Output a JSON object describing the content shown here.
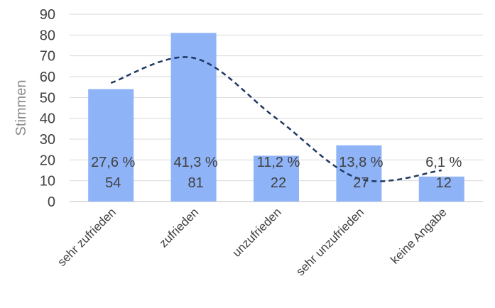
{
  "chart_data": {
    "type": "bar",
    "title": "",
    "xlabel": "",
    "ylabel": "Stimmen",
    "ylim": [
      0,
      90
    ],
    "yticks": [
      0,
      10,
      20,
      30,
      40,
      50,
      60,
      70,
      80,
      90
    ],
    "grid": true,
    "legend": "none",
    "categories": [
      "sehr zufrieden",
      "zufrieden",
      "unzufrieden",
      "sehr unzufrieden",
      "keine Angabe"
    ],
    "values": [
      54,
      81,
      22,
      27,
      12
    ],
    "percent_labels": [
      "27,6 %",
      "41,3 %",
      "11,2 %",
      "13,8 %",
      "6,1 %"
    ],
    "trendline": {
      "type": "polynomial",
      "style": "dashed",
      "color": "#1f3864",
      "points": [
        {
          "category": "sehr zufrieden",
          "y": 57
        },
        {
          "category": "zufrieden",
          "y": 69
        },
        {
          "category": "unzufrieden",
          "y": 40
        },
        {
          "category": "sehr unzufrieden",
          "y": 11
        },
        {
          "category": "keine Angabe",
          "y": 15
        }
      ]
    },
    "colors": {
      "bar": "#8fb3f7",
      "gridline": "#d9d9d9",
      "axis_line": "#bfbfbf",
      "text": "#404040",
      "axis_title": "#8c8c8c",
      "trendline": "#1f3864"
    }
  }
}
